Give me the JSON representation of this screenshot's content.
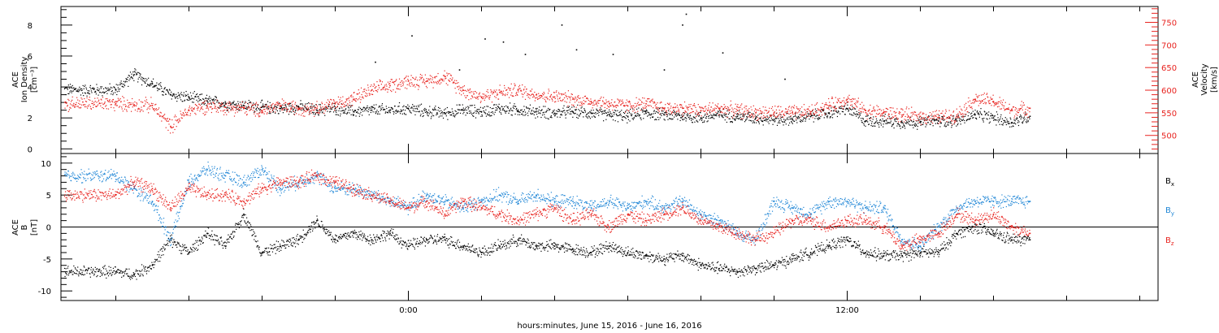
{
  "chart_data": [
    {
      "type": "scatter",
      "panel": "plasma",
      "ylabel_left": [
        "ACE",
        "Ion Density",
        "[cm⁻³]"
      ],
      "ylabel_right": [
        "ACE",
        "Velocity",
        "[km/s]"
      ],
      "ylim_left": [
        -0.3,
        9.2
      ],
      "ylim_right": [
        460,
        785
      ],
      "yticks_left": [
        0,
        2,
        4,
        6,
        8
      ],
      "yticks_right": [
        500,
        550,
        600,
        650,
        700,
        750
      ],
      "series": [
        {
          "color": "#000000",
          "axis": "left",
          "x": [
            -8,
            -7.5,
            -7,
            -6.5,
            -6,
            -5.5,
            -5,
            -4.5,
            -4,
            -3.5,
            -3,
            -2.5,
            -2,
            -1.5,
            -1,
            -0.5,
            0,
            0.5,
            1,
            1.5,
            2,
            2.5,
            3,
            3.5,
            4,
            4.5,
            5,
            5.5,
            6,
            6.5,
            7,
            7.5,
            8,
            8.5,
            9,
            9.5,
            10,
            10.5,
            11,
            11.5,
            12,
            12.5,
            13,
            13.5,
            14,
            14.5,
            15,
            15.5,
            16,
            16.5,
            17
          ],
          "y": [
            3.8,
            4.8,
            4.2,
            3.5,
            3.3,
            3.1,
            2.9,
            2.8,
            2.7,
            2.6,
            2.7,
            2.5,
            2.6,
            2.4,
            2.5,
            2.5,
            2.6,
            2.4,
            2.3,
            2.5,
            2.4,
            2.6,
            2.5,
            2.4,
            2.3,
            2.4,
            2.3,
            2.2,
            2.1,
            2.3,
            2.2,
            2.1,
            2.0,
            2.2,
            2.1,
            2.0,
            1.9,
            1.9,
            2.1,
            2.3,
            2.6,
            1.8,
            1.8,
            1.7,
            1.7,
            1.8,
            1.8,
            2.2,
            2.0,
            1.7,
            2.1
          ]
        },
        {
          "color": "#e8231f",
          "axis": "right",
          "x": [
            -8,
            -7.5,
            -7,
            -6.5,
            -6,
            -5.5,
            -5,
            -4.5,
            -4,
            -3.5,
            -3,
            -2.5,
            -2,
            -1.5,
            -1,
            -0.5,
            0,
            0.5,
            1,
            1.5,
            2,
            2.5,
            3,
            3.5,
            4,
            4.5,
            5,
            5.5,
            6,
            6.5,
            7,
            7.5,
            8,
            8.5,
            9,
            9.5,
            10,
            10.5,
            11,
            11.5,
            12,
            12.5,
            13,
            13.5,
            14,
            14.5,
            15,
            15.5,
            16,
            16.5,
            17
          ],
          "y": [
            570,
            568,
            566,
            520,
            555,
            565,
            562,
            560,
            555,
            565,
            560,
            560,
            570,
            580,
            600,
            610,
            620,
            620,
            630,
            600,
            585,
            595,
            600,
            590,
            585,
            580,
            575,
            570,
            565,
            570,
            560,
            560,
            555,
            560,
            555,
            550,
            550,
            550,
            552,
            565,
            580,
            555,
            550,
            545,
            542,
            540,
            545,
            580,
            575,
            555,
            560
          ]
        }
      ],
      "outlier_points": [
        {
          "x": 7.6,
          "y": 8.7
        },
        {
          "x": 7.5,
          "y": 8.0
        },
        {
          "x": 4.2,
          "y": 8.0
        },
        {
          "x": 0.1,
          "y": 7.3
        },
        {
          "x": 2.1,
          "y": 7.1
        },
        {
          "x": 2.6,
          "y": 6.9
        },
        {
          "x": 5.6,
          "y": 6.1
        },
        {
          "x": 8.6,
          "y": 6.2
        },
        {
          "x": 4.6,
          "y": 6.4
        },
        {
          "x": -0.9,
          "y": 5.6
        },
        {
          "x": 1.4,
          "y": 5.1
        },
        {
          "x": 7.0,
          "y": 5.1
        },
        {
          "x": 10.3,
          "y": 4.5
        },
        {
          "x": 3.2,
          "y": 6.1
        }
      ]
    },
    {
      "type": "scatter",
      "panel": "magnetic-field",
      "ylabel_left": [
        "ACE",
        "B",
        "[nT]"
      ],
      "ylim": [
        -11.5,
        11.5
      ],
      "yticks": [
        -10,
        -5,
        0,
        5,
        10
      ],
      "zero_line": true,
      "legend": [
        {
          "label": "B",
          "sub": "x",
          "color": "#000000"
        },
        {
          "label": "B",
          "sub": "y",
          "color": "#1f86d6"
        },
        {
          "label": "B",
          "sub": "z",
          "color": "#e8231f"
        }
      ],
      "series": [
        {
          "color": "#000000",
          "x": [
            -8,
            -7.5,
            -7,
            -6.5,
            -6,
            -5.5,
            -5,
            -4.5,
            -4,
            -3.5,
            -3,
            -2.5,
            -2,
            -1.5,
            -1,
            -0.5,
            0,
            0.5,
            1,
            1.5,
            2,
            2.5,
            3,
            3.5,
            4,
            4.5,
            5,
            5.5,
            6,
            6.5,
            7,
            7.5,
            8,
            8.5,
            9,
            9.5,
            10,
            10.5,
            11,
            11.5,
            12,
            12.5,
            13,
            13.5,
            14,
            14.5,
            15,
            15.5,
            16,
            16.5,
            17
          ],
          "y": [
            -7,
            -7.5,
            -6,
            -2,
            -4,
            -1,
            -3,
            2,
            -4,
            -3,
            -2,
            1,
            -2,
            -1,
            -2,
            -1,
            -3,
            -2,
            -2,
            -3,
            -4,
            -3,
            -2,
            -3,
            -3,
            -3.5,
            -4,
            -3,
            -4,
            -4.5,
            -5,
            -4.5,
            -6,
            -6.5,
            -7,
            -6.5,
            -6,
            -5,
            -4,
            -3,
            -2,
            -4,
            -4.5,
            -4.5,
            -4,
            -4,
            -1,
            0,
            -1,
            -2,
            -2
          ]
        },
        {
          "color": "#1f86d6",
          "x": [
            -8,
            -7.5,
            -7,
            -6.5,
            -6,
            -5.5,
            -5,
            -4.5,
            -4,
            -3.5,
            -3,
            -2.5,
            -2,
            -1.5,
            -1,
            -0.5,
            0,
            0.5,
            1,
            1.5,
            2,
            2.5,
            3,
            3.5,
            4,
            4.5,
            5,
            5.5,
            6,
            6.5,
            7,
            7.5,
            8,
            8.5,
            9,
            9.5,
            10,
            10.5,
            11,
            11.5,
            12,
            12.5,
            13,
            13.5,
            14,
            14.5,
            15,
            15.5,
            16,
            16.5,
            17
          ],
          "y": [
            8,
            6,
            4,
            -2,
            7,
            9,
            8,
            7,
            9,
            6,
            7,
            8,
            6,
            6,
            5,
            4,
            3,
            5,
            4,
            3,
            4,
            5,
            4,
            5,
            4,
            4,
            3,
            4,
            3,
            4,
            3,
            4,
            2,
            1,
            -1,
            -2,
            4,
            3,
            2,
            4,
            4,
            3,
            3,
            -2,
            -3,
            0,
            3,
            4,
            4,
            4,
            4
          ]
        },
        {
          "color": "#e8231f",
          "x": [
            -8,
            -7.5,
            -7,
            -6.5,
            -6,
            -5.5,
            -5,
            -4.5,
            -4,
            -3.5,
            -3,
            -2.5,
            -2,
            -1.5,
            -1,
            -0.5,
            0,
            0.5,
            1,
            1.5,
            2,
            2.5,
            3,
            3.5,
            4,
            4.5,
            5,
            5.5,
            6,
            6.5,
            7,
            7.5,
            8,
            8.5,
            9,
            9.5,
            10,
            10.5,
            11,
            11.5,
            12,
            12.5,
            13,
            13.5,
            14,
            14.5,
            15,
            15.5,
            16,
            16.5,
            17
          ],
          "y": [
            5,
            7,
            6,
            3,
            6,
            5,
            5,
            4,
            6,
            7,
            7,
            8,
            7,
            6,
            5,
            4,
            3,
            4,
            2,
            4,
            3,
            2,
            1,
            2,
            3,
            1,
            2,
            0,
            2,
            1,
            2,
            3,
            1,
            0,
            -1,
            -2,
            -1,
            1,
            1,
            0,
            1,
            1,
            0,
            -3,
            -2,
            -1,
            2,
            1,
            2,
            0,
            -1
          ]
        }
      ]
    }
  ],
  "x_axis": {
    "label": "hours:minutes, June 15, 2016 - June 16, 2016",
    "range_hours": [
      -9.5,
      20.5
    ],
    "labeled_ticks": [
      {
        "hours": 0,
        "label": "0:00"
      },
      {
        "hours": 12,
        "label": "12:00"
      }
    ],
    "minor_tick_step_hours": 2
  }
}
